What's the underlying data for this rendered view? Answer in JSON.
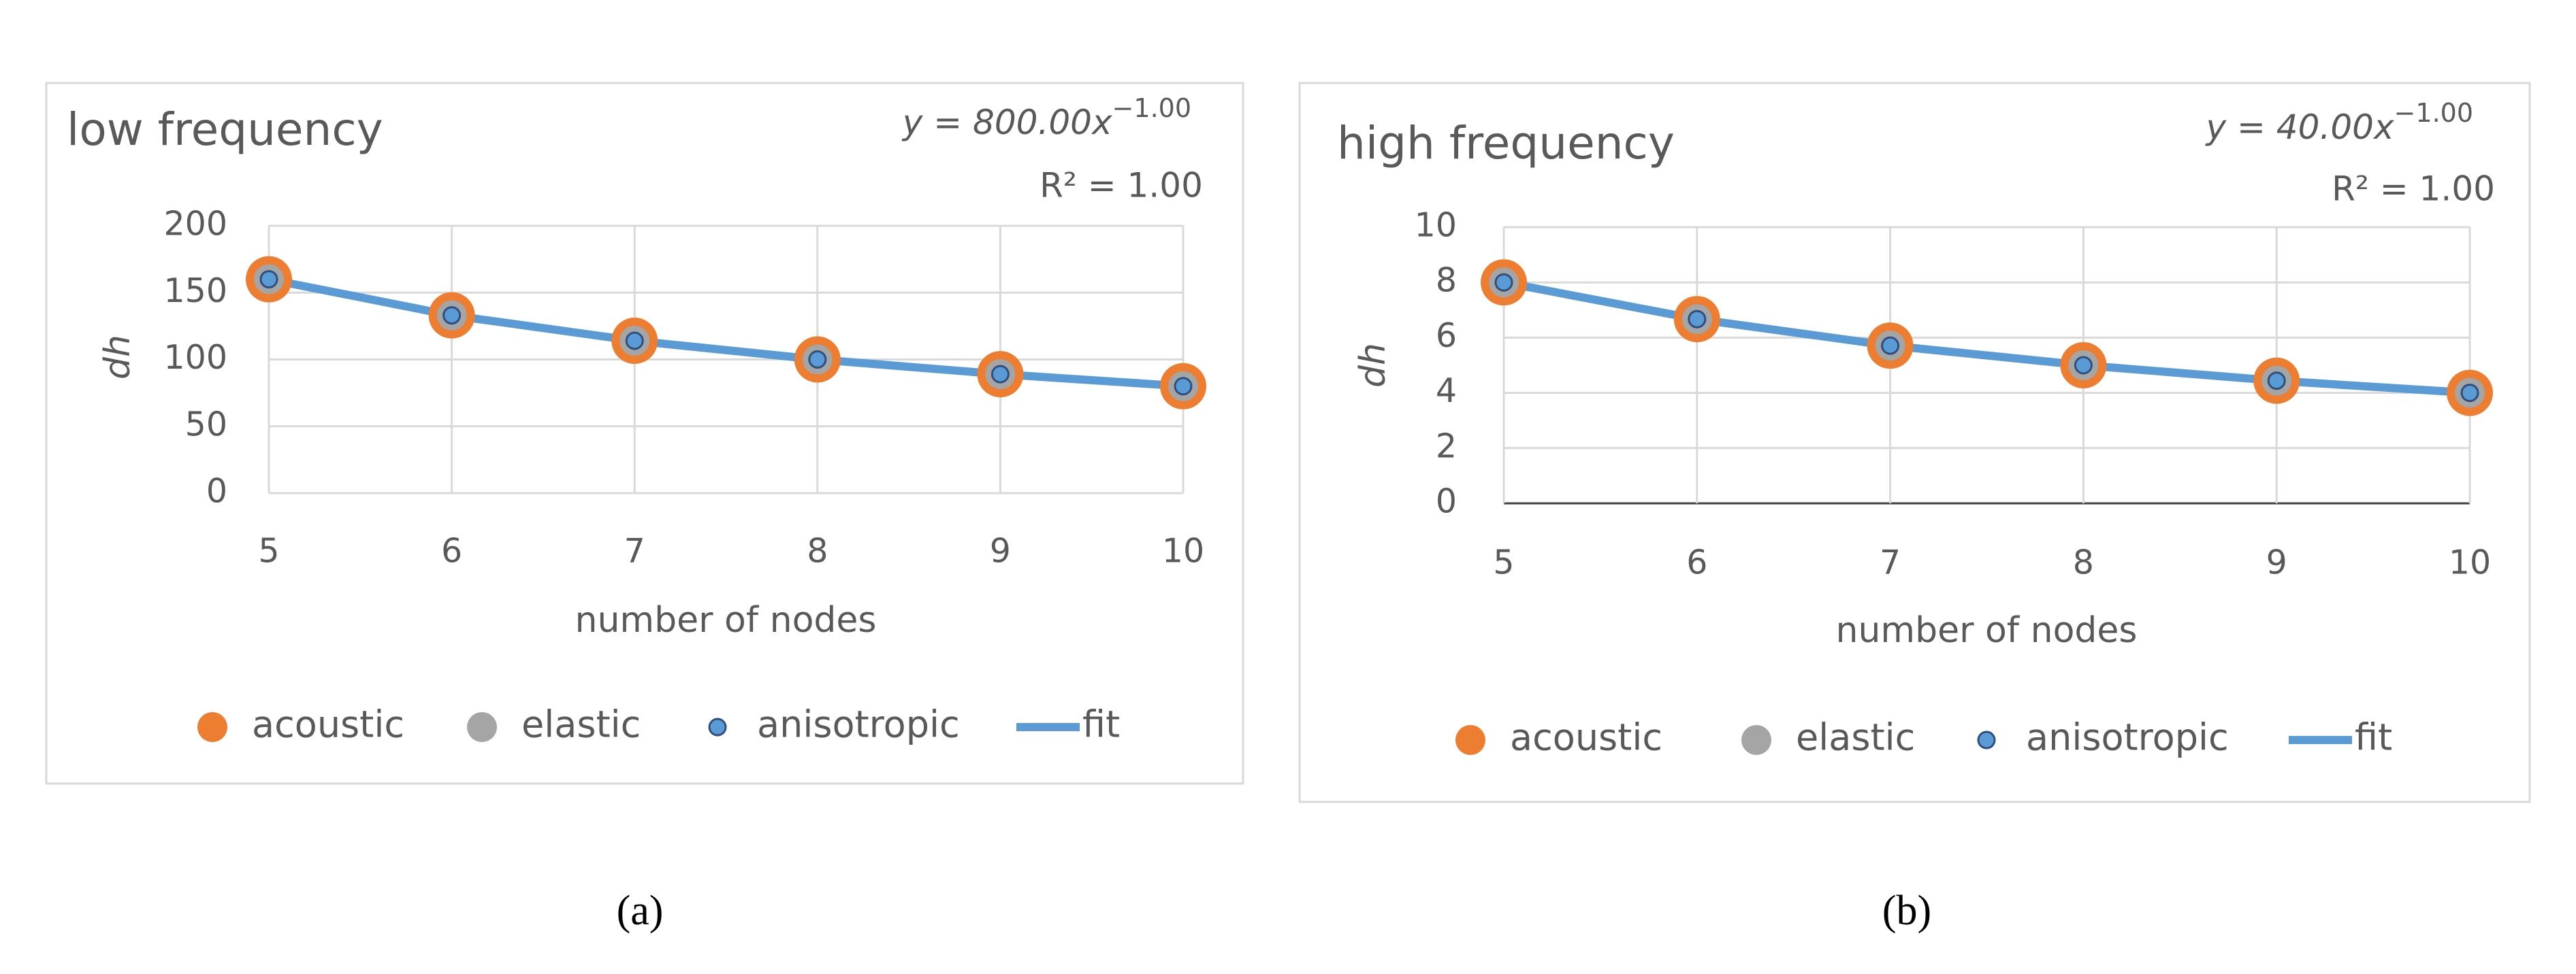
{
  "chart_data": [
    {
      "type": "scatter",
      "title": "low frequency",
      "panel_label": "(a)",
      "equation": "y = 800.00x",
      "equation_exponent": "−1.00",
      "r_squared": "R² = 1.00",
      "xlabel": "number of nodes",
      "ylabel": "dh",
      "x": [
        5,
        6,
        7,
        8,
        9,
        10
      ],
      "series": [
        {
          "name": "acoustic",
          "color": "#ED7D31",
          "style": "marker",
          "values": [
            160,
            133,
            114,
            100,
            89,
            80
          ]
        },
        {
          "name": "elastic",
          "color": "#A5A5A5",
          "style": "marker",
          "values": [
            160,
            133,
            114,
            100,
            89,
            80
          ]
        },
        {
          "name": "anisotropic",
          "color": "#5B9BD5",
          "style": "marker",
          "values": [
            160,
            133,
            114,
            100,
            89,
            80
          ]
        },
        {
          "name": "fit",
          "color": "#5B9BD5",
          "style": "line",
          "values": [
            160,
            133,
            114,
            100,
            89,
            80
          ]
        }
      ],
      "xlim": [
        5,
        10
      ],
      "xticks": [
        5,
        6,
        7,
        8,
        9,
        10
      ],
      "ylim": [
        0,
        200
      ],
      "yticks": [
        0,
        50,
        100,
        150,
        200
      ],
      "grid": true,
      "xaxis_color": "#d9d9d9"
    },
    {
      "type": "scatter",
      "title": "high frequency",
      "panel_label": "(b)",
      "equation": "y = 40.00x",
      "equation_exponent": "−1.00",
      "r_squared": "R² = 1.00",
      "xlabel": "number of nodes",
      "ylabel": "dh",
      "x": [
        5,
        6,
        7,
        8,
        9,
        10
      ],
      "series": [
        {
          "name": "acoustic",
          "color": "#ED7D31",
          "style": "marker",
          "values": [
            8,
            6.67,
            5.71,
            5,
            4.44,
            4
          ]
        },
        {
          "name": "elastic",
          "color": "#A5A5A5",
          "style": "marker",
          "values": [
            8,
            6.67,
            5.71,
            5,
            4.44,
            4
          ]
        },
        {
          "name": "anisotropic",
          "color": "#5B9BD5",
          "style": "marker",
          "values": [
            8,
            6.67,
            5.71,
            5,
            4.44,
            4
          ]
        },
        {
          "name": "fit",
          "color": "#5B9BD5",
          "style": "line",
          "values": [
            8,
            6.67,
            5.71,
            5,
            4.44,
            4
          ]
        }
      ],
      "xlim": [
        5,
        10
      ],
      "xticks": [
        5,
        6,
        7,
        8,
        9,
        10
      ],
      "ylim": [
        0,
        10
      ],
      "yticks": [
        0,
        2,
        4,
        6,
        8,
        10
      ],
      "grid": true,
      "xaxis_color": "#404040"
    }
  ]
}
